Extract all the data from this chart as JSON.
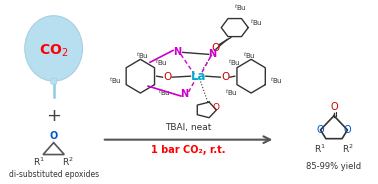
{
  "bg_color": "#ffffff",
  "balloon_color": "#b8dff0",
  "balloon_edge_color": "#a8cfe0",
  "co2_color": "#ff0000",
  "o_blue_color": "#0055cc",
  "o_red_color": "#cc0000",
  "n_purple_color": "#cc00cc",
  "la_color": "#00aacc",
  "bond_color": "#333333",
  "tbu_color": "#333333",
  "arrow_color": "#555555",
  "cond1_color": "#333333",
  "cond2_color": "#ff0000",
  "cond1": "TBAI, neat",
  "cond2": "1 bar CO₂, r.t.",
  "label_epoxide": "di-substituted epoxides",
  "label_yield": "85-99% yield"
}
